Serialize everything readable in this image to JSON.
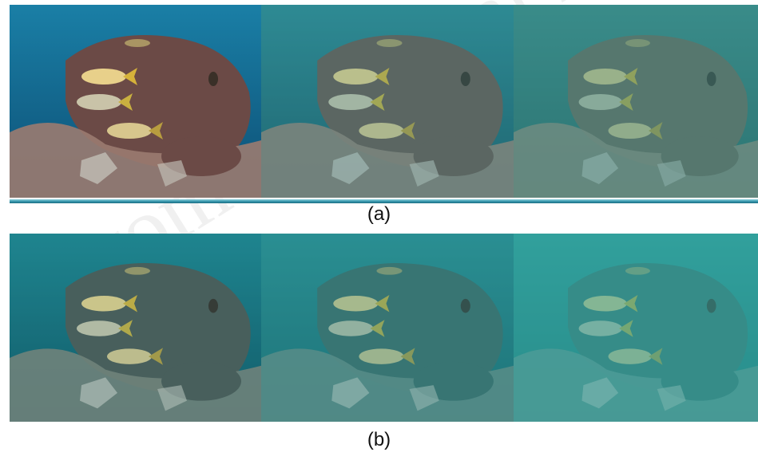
{
  "figure": {
    "caption_a": "(a)",
    "caption_b": "(b)",
    "watermark": "From Technical Electron"
  },
  "rows": {
    "a": {
      "panels": [
        {
          "name": "panel-a1",
          "water": "#1a7fa6",
          "water_dark": "#0d4f75",
          "rock": "#6b4a46",
          "rock_light": "#9b7b70",
          "fog": 0.0
        },
        {
          "name": "panel-a2",
          "water": "#2e8a94",
          "water_dark": "#1a5a66",
          "rock": "#6a5a52",
          "rock_light": "#938276",
          "fog": 0.25
        },
        {
          "name": "panel-a3",
          "water": "#3a8c8a",
          "water_dark": "#22615f",
          "rock": "#6e6658",
          "rock_light": "#948a79",
          "fog": 0.45
        }
      ]
    },
    "b": {
      "panels": [
        {
          "name": "panel-b1",
          "water": "#1f8590",
          "water_dark": "#0f5564",
          "rock": "#4f5954",
          "rock_light": "#7c8278",
          "fog": 0.15
        },
        {
          "name": "panel-b2",
          "water": "#2a8f93",
          "water_dark": "#17646b",
          "rock": "#3f6763",
          "rock_light": "#6d8a82",
          "fog": 0.35
        },
        {
          "name": "panel-b3",
          "water": "#32a09c",
          "water_dark": "#1e7474",
          "rock": "#3d7470",
          "rock_light": "#6a958f",
          "fog": 0.55
        }
      ]
    }
  }
}
